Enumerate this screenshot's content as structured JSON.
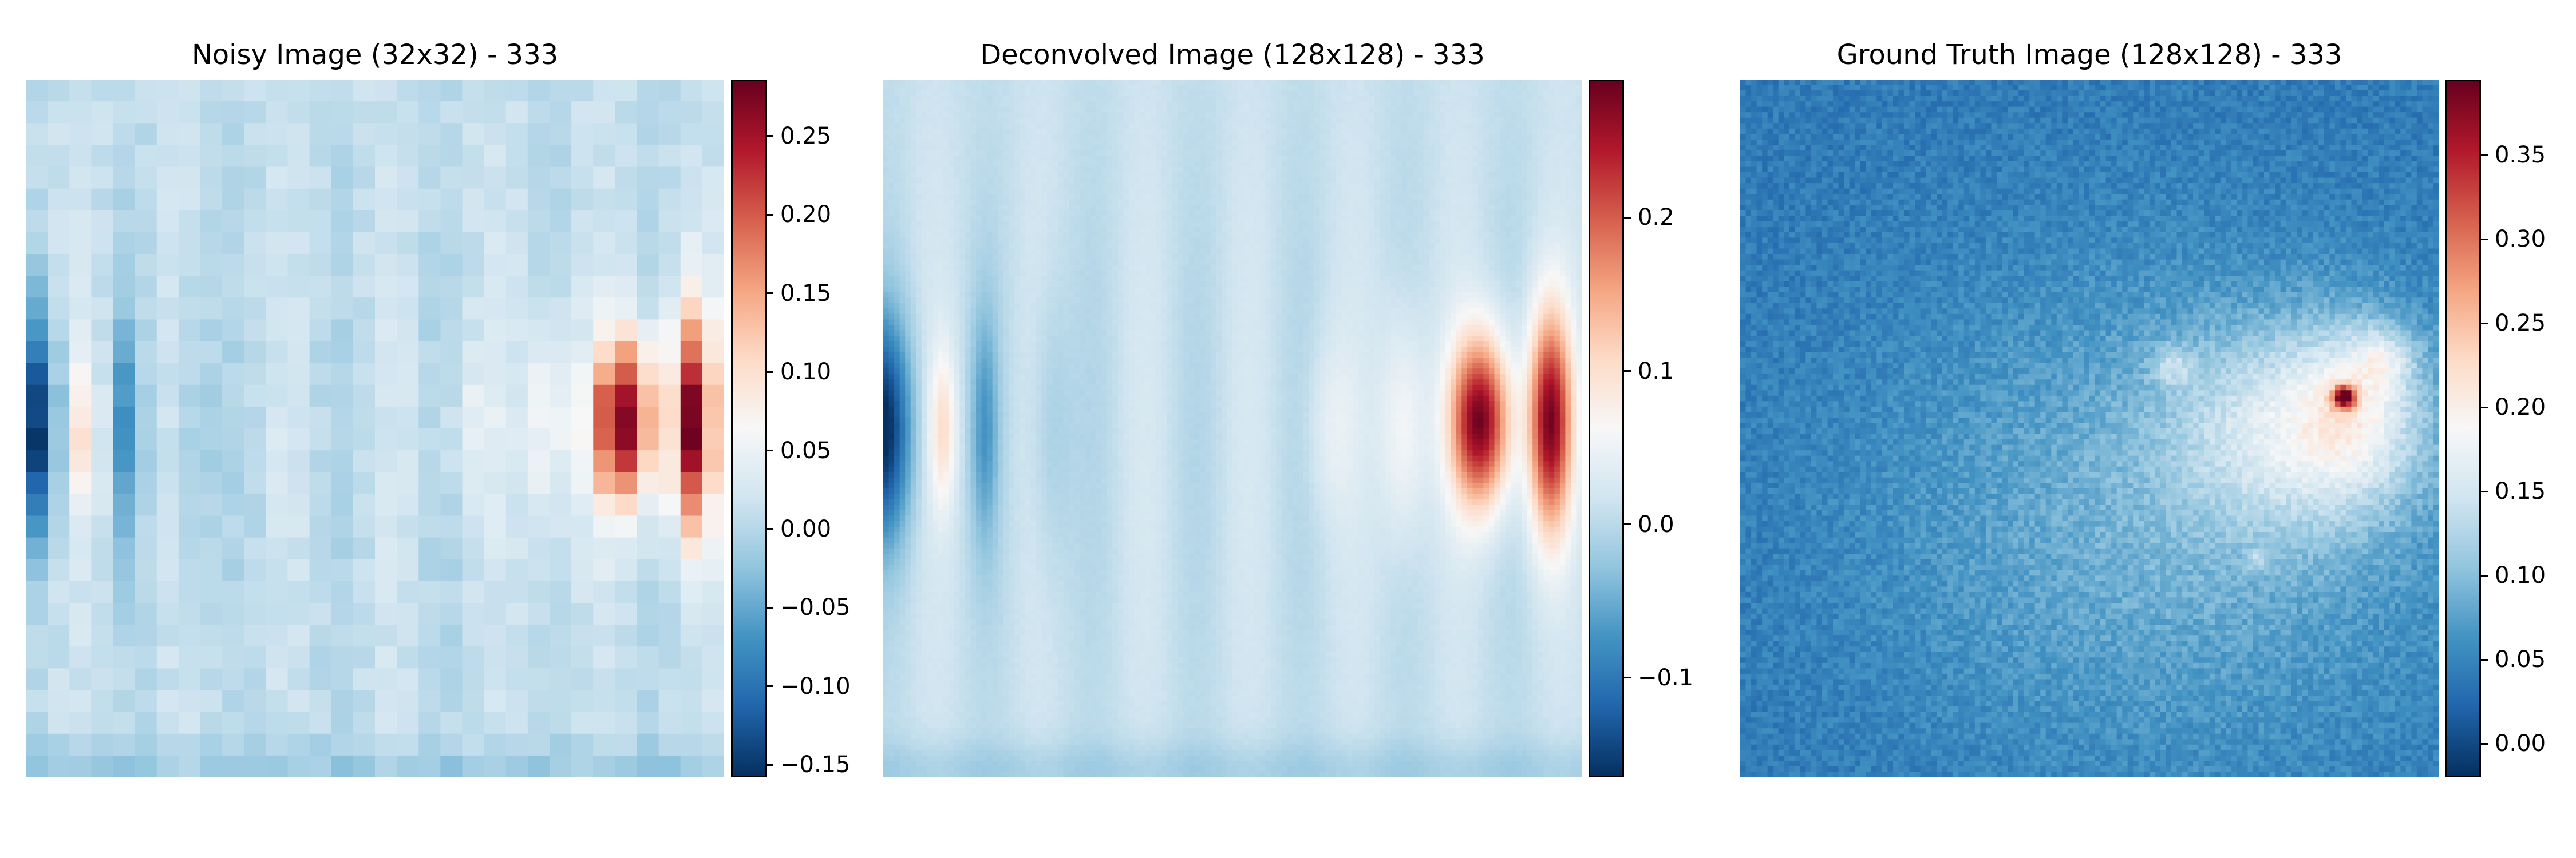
{
  "colors": {
    "cmap": "RdBu_r",
    "stops": [
      "#053061",
      "#2166ac",
      "#4393c3",
      "#92c5de",
      "#d1e5f0",
      "#f7f7f7",
      "#fddbc7",
      "#f4a582",
      "#d6604d",
      "#b2182b",
      "#67001f"
    ]
  },
  "chart_data": [
    {
      "type": "heatmap",
      "title": "Noisy Image (32x32) - 333",
      "grid": [
        32,
        32
      ],
      "vmin": -0.158,
      "vmax": 0.286,
      "colorbar": {
        "ticks": [
          -0.15,
          -0.1,
          -0.05,
          0.0,
          0.05,
          0.1,
          0.15,
          0.2,
          0.25
        ],
        "tick_labels": [
          "−0.15",
          "−0.10",
          "−0.05",
          "0.00",
          "0.05",
          "0.10",
          "0.15",
          "0.20",
          "0.25"
        ]
      }
    },
    {
      "type": "heatmap",
      "title": "Deconvolved Image (128x128) - 333",
      "grid": [
        128,
        128
      ],
      "vmin": -0.165,
      "vmax": 0.29,
      "colorbar": {
        "ticks": [
          -0.1,
          0.0,
          0.1,
          0.2
        ],
        "tick_labels": [
          "−0.1",
          "0.0",
          "0.1",
          "0.2"
        ]
      }
    },
    {
      "type": "heatmap",
      "title": "Ground Truth Image (128x128) - 333",
      "grid": [
        128,
        128
      ],
      "vmin": -0.02,
      "vmax": 0.395,
      "colorbar": {
        "ticks": [
          0.0,
          0.05,
          0.1,
          0.15,
          0.2,
          0.25,
          0.3,
          0.35
        ],
        "tick_labels": [
          "0.00",
          "0.05",
          "0.10",
          "0.15",
          "0.20",
          "0.25",
          "0.30",
          "0.35"
        ]
      }
    }
  ]
}
